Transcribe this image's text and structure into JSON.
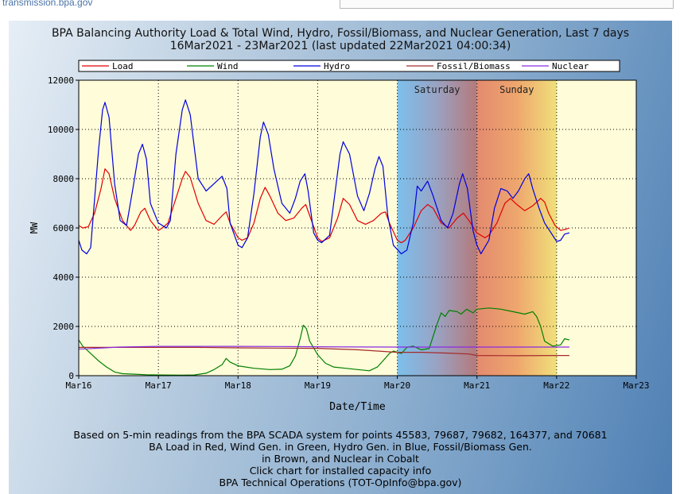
{
  "page": {
    "site_link": "transmission.bpa.gov"
  },
  "chart_data": {
    "type": "line",
    "title": "BPA Balancing Authority Load & Total Wind, Hydro, Fossil/Biomass, and Nuclear Generation, Last 7 days",
    "subtitle": "16Mar2021 - 23Mar2021 (last updated 22Mar2021 04:00:34)",
    "xlabel": "Date/Time",
    "ylabel": "MW",
    "xlim": [
      0,
      7
    ],
    "ylim": [
      0,
      12000
    ],
    "x_ticks": [
      "Mar16",
      "Mar17",
      "Mar18",
      "Mar19",
      "Mar20",
      "Mar21",
      "Mar22",
      "Mar23"
    ],
    "y_ticks": [
      "0",
      "2000",
      "4000",
      "6000",
      "8000",
      "10000",
      "12000"
    ],
    "grid": true,
    "legend_position": "top",
    "weekend_bands": [
      {
        "label": "Saturday",
        "start": 4,
        "end": 5
      },
      {
        "label": "Sunday",
        "start": 5,
        "end": 6
      }
    ],
    "series": [
      {
        "name": "Load",
        "color": "#e00000",
        "points": [
          [
            0,
            6100
          ],
          [
            0.05,
            6000
          ],
          [
            0.12,
            6050
          ],
          [
            0.2,
            6600
          ],
          [
            0.28,
            7600
          ],
          [
            0.33,
            8400
          ],
          [
            0.38,
            8200
          ],
          [
            0.45,
            7200
          ],
          [
            0.55,
            6300
          ],
          [
            0.65,
            5900
          ],
          [
            0.7,
            6100
          ],
          [
            0.78,
            6650
          ],
          [
            0.83,
            6800
          ],
          [
            0.9,
            6300
          ],
          [
            1.0,
            5900
          ],
          [
            1.05,
            6000
          ],
          [
            1.12,
            6200
          ],
          [
            1.2,
            7000
          ],
          [
            1.3,
            8000
          ],
          [
            1.34,
            8300
          ],
          [
            1.4,
            8050
          ],
          [
            1.5,
            7000
          ],
          [
            1.6,
            6300
          ],
          [
            1.7,
            6150
          ],
          [
            1.8,
            6500
          ],
          [
            1.85,
            6650
          ],
          [
            1.9,
            6200
          ],
          [
            2.0,
            5600
          ],
          [
            2.05,
            5500
          ],
          [
            2.12,
            5600
          ],
          [
            2.2,
            6200
          ],
          [
            2.28,
            7200
          ],
          [
            2.34,
            7650
          ],
          [
            2.4,
            7300
          ],
          [
            2.5,
            6600
          ],
          [
            2.6,
            6300
          ],
          [
            2.7,
            6400
          ],
          [
            2.8,
            6800
          ],
          [
            2.85,
            6950
          ],
          [
            2.9,
            6500
          ],
          [
            3.0,
            5600
          ],
          [
            3.05,
            5450
          ],
          [
            3.15,
            5600
          ],
          [
            3.25,
            6400
          ],
          [
            3.32,
            7200
          ],
          [
            3.4,
            6950
          ],
          [
            3.5,
            6300
          ],
          [
            3.6,
            6150
          ],
          [
            3.7,
            6300
          ],
          [
            3.8,
            6600
          ],
          [
            3.85,
            6650
          ],
          [
            3.9,
            6200
          ],
          [
            4.0,
            5500
          ],
          [
            4.05,
            5400
          ],
          [
            4.1,
            5500
          ],
          [
            4.2,
            6000
          ],
          [
            4.3,
            6700
          ],
          [
            4.38,
            6950
          ],
          [
            4.45,
            6800
          ],
          [
            4.55,
            6200
          ],
          [
            4.65,
            6000
          ],
          [
            4.75,
            6400
          ],
          [
            4.83,
            6600
          ],
          [
            4.9,
            6300
          ],
          [
            5.0,
            5800
          ],
          [
            5.1,
            5600
          ],
          [
            5.15,
            5700
          ],
          [
            5.25,
            6200
          ],
          [
            5.35,
            7000
          ],
          [
            5.42,
            7200
          ],
          [
            5.5,
            6950
          ],
          [
            5.6,
            6700
          ],
          [
            5.7,
            6900
          ],
          [
            5.8,
            7200
          ],
          [
            5.85,
            7050
          ],
          [
            5.9,
            6600
          ],
          [
            5.98,
            6100
          ],
          [
            6.05,
            5900
          ],
          [
            6.12,
            5950
          ],
          [
            6.16,
            6000
          ]
        ]
      },
      {
        "name": "Wind",
        "color": "#008000",
        "points": [
          [
            0,
            1450
          ],
          [
            0.05,
            1200
          ],
          [
            0.1,
            1050
          ],
          [
            0.15,
            900
          ],
          [
            0.25,
            600
          ],
          [
            0.35,
            350
          ],
          [
            0.45,
            150
          ],
          [
            0.55,
            80
          ],
          [
            0.7,
            60
          ],
          [
            0.85,
            40
          ],
          [
            1.0,
            30
          ],
          [
            1.15,
            25
          ],
          [
            1.3,
            20
          ],
          [
            1.45,
            30
          ],
          [
            1.6,
            100
          ],
          [
            1.7,
            250
          ],
          [
            1.8,
            450
          ],
          [
            1.85,
            700
          ],
          [
            1.9,
            550
          ],
          [
            2.0,
            400
          ],
          [
            2.2,
            300
          ],
          [
            2.4,
            250
          ],
          [
            2.55,
            260
          ],
          [
            2.65,
            400
          ],
          [
            2.72,
            800
          ],
          [
            2.78,
            1500
          ],
          [
            2.82,
            2050
          ],
          [
            2.86,
            1900
          ],
          [
            2.9,
            1400
          ],
          [
            3.0,
            850
          ],
          [
            3.1,
            500
          ],
          [
            3.2,
            350
          ],
          [
            3.35,
            300
          ],
          [
            3.5,
            250
          ],
          [
            3.65,
            200
          ],
          [
            3.75,
            350
          ],
          [
            3.82,
            600
          ],
          [
            3.9,
            900
          ],
          [
            3.95,
            1000
          ],
          [
            4.05,
            900
          ],
          [
            4.12,
            1150
          ],
          [
            4.2,
            1200
          ],
          [
            4.3,
            1050
          ],
          [
            4.4,
            1100
          ],
          [
            4.5,
            2100
          ],
          [
            4.55,
            2550
          ],
          [
            4.6,
            2400
          ],
          [
            4.65,
            2650
          ],
          [
            4.75,
            2600
          ],
          [
            4.8,
            2500
          ],
          [
            4.87,
            2700
          ],
          [
            4.95,
            2550
          ],
          [
            5.0,
            2700
          ],
          [
            5.15,
            2750
          ],
          [
            5.3,
            2700
          ],
          [
            5.45,
            2600
          ],
          [
            5.6,
            2500
          ],
          [
            5.7,
            2600
          ],
          [
            5.75,
            2400
          ],
          [
            5.8,
            2000
          ],
          [
            5.85,
            1400
          ],
          [
            5.95,
            1200
          ],
          [
            6.05,
            1250
          ],
          [
            6.1,
            1500
          ],
          [
            6.16,
            1450
          ]
        ]
      },
      {
        "name": "Hydro",
        "color": "#0000e0",
        "points": [
          [
            0,
            5500
          ],
          [
            0.04,
            5100
          ],
          [
            0.1,
            4950
          ],
          [
            0.15,
            5200
          ],
          [
            0.2,
            7200
          ],
          [
            0.25,
            9200
          ],
          [
            0.3,
            10800
          ],
          [
            0.33,
            11100
          ],
          [
            0.38,
            10500
          ],
          [
            0.45,
            7800
          ],
          [
            0.52,
            6300
          ],
          [
            0.6,
            6100
          ],
          [
            0.68,
            7600
          ],
          [
            0.75,
            9000
          ],
          [
            0.8,
            9400
          ],
          [
            0.85,
            8800
          ],
          [
            0.9,
            7000
          ],
          [
            1.0,
            6200
          ],
          [
            1.1,
            6000
          ],
          [
            1.15,
            6300
          ],
          [
            1.22,
            9000
          ],
          [
            1.3,
            10800
          ],
          [
            1.34,
            11200
          ],
          [
            1.4,
            10600
          ],
          [
            1.5,
            8000
          ],
          [
            1.6,
            7500
          ],
          [
            1.7,
            7800
          ],
          [
            1.8,
            8100
          ],
          [
            1.86,
            7600
          ],
          [
            1.9,
            6200
          ],
          [
            2.0,
            5300
          ],
          [
            2.05,
            5200
          ],
          [
            2.12,
            5600
          ],
          [
            2.2,
            7400
          ],
          [
            2.28,
            9700
          ],
          [
            2.32,
            10300
          ],
          [
            2.38,
            9800
          ],
          [
            2.45,
            8400
          ],
          [
            2.55,
            7000
          ],
          [
            2.65,
            6600
          ],
          [
            2.72,
            7200
          ],
          [
            2.78,
            7900
          ],
          [
            2.84,
            8200
          ],
          [
            2.88,
            7500
          ],
          [
            2.95,
            5800
          ],
          [
            3.0,
            5500
          ],
          [
            3.05,
            5400
          ],
          [
            3.15,
            5700
          ],
          [
            3.22,
            7500
          ],
          [
            3.28,
            9000
          ],
          [
            3.32,
            9500
          ],
          [
            3.4,
            9000
          ],
          [
            3.5,
            7300
          ],
          [
            3.58,
            6700
          ],
          [
            3.65,
            7400
          ],
          [
            3.72,
            8400
          ],
          [
            3.77,
            8900
          ],
          [
            3.82,
            8500
          ],
          [
            3.88,
            6500
          ],
          [
            3.95,
            5300
          ],
          [
            4.05,
            4950
          ],
          [
            4.12,
            5100
          ],
          [
            4.2,
            6200
          ],
          [
            4.25,
            7700
          ],
          [
            4.3,
            7500
          ],
          [
            4.38,
            7900
          ],
          [
            4.45,
            7300
          ],
          [
            4.55,
            6300
          ],
          [
            4.63,
            6000
          ],
          [
            4.7,
            6600
          ],
          [
            4.78,
            7800
          ],
          [
            4.82,
            8200
          ],
          [
            4.88,
            7600
          ],
          [
            4.95,
            5900
          ],
          [
            5.0,
            5300
          ],
          [
            5.05,
            4950
          ],
          [
            5.15,
            5500
          ],
          [
            5.22,
            6800
          ],
          [
            5.3,
            7600
          ],
          [
            5.38,
            7500
          ],
          [
            5.45,
            7200
          ],
          [
            5.52,
            7500
          ],
          [
            5.6,
            8000
          ],
          [
            5.65,
            8200
          ],
          [
            5.7,
            7600
          ],
          [
            5.78,
            6800
          ],
          [
            5.85,
            6200
          ],
          [
            5.95,
            5700
          ],
          [
            6.0,
            5450
          ],
          [
            6.05,
            5500
          ],
          [
            6.1,
            5750
          ],
          [
            6.16,
            5800
          ]
        ]
      },
      {
        "name": "Fossil/Biomass",
        "color": "#a52a2a",
        "points": [
          [
            0,
            1150
          ],
          [
            0.5,
            1150
          ],
          [
            1.0,
            1150
          ],
          [
            1.5,
            1150
          ],
          [
            2.0,
            1130
          ],
          [
            2.5,
            1120
          ],
          [
            3.0,
            1110
          ],
          [
            3.5,
            1050
          ],
          [
            4.0,
            950
          ],
          [
            4.3,
            950
          ],
          [
            4.6,
            920
          ],
          [
            4.9,
            880
          ],
          [
            5.0,
            820
          ],
          [
            5.5,
            810
          ],
          [
            6.0,
            820
          ],
          [
            6.16,
            820
          ]
        ]
      },
      {
        "name": "Nuclear",
        "color": "#8a2be2",
        "points": [
          [
            0,
            1080
          ],
          [
            0.1,
            1090
          ],
          [
            0.5,
            1160
          ],
          [
            1.0,
            1190
          ],
          [
            1.5,
            1190
          ],
          [
            2.0,
            1190
          ],
          [
            2.5,
            1185
          ],
          [
            3.0,
            1175
          ],
          [
            3.5,
            1165
          ],
          [
            4.0,
            1160
          ],
          [
            4.5,
            1160
          ],
          [
            5.0,
            1160
          ],
          [
            5.5,
            1160
          ],
          [
            6.0,
            1160
          ],
          [
            6.16,
            1160
          ]
        ]
      }
    ]
  },
  "footer": {
    "lines": [
      "Based on 5-min readings from the BPA SCADA system for points 45583, 79687, 79682, 164377, and 70681",
      "BA Load in Red, Wind Gen. in Green, Hydro Gen. in Blue, Fossil/Biomass Gen.",
      "in Brown, and Nuclear in Cobalt",
      "Click chart for installed capacity info",
      "BPA Technical Operations (TOT-OpInfo@bpa.gov)"
    ]
  }
}
